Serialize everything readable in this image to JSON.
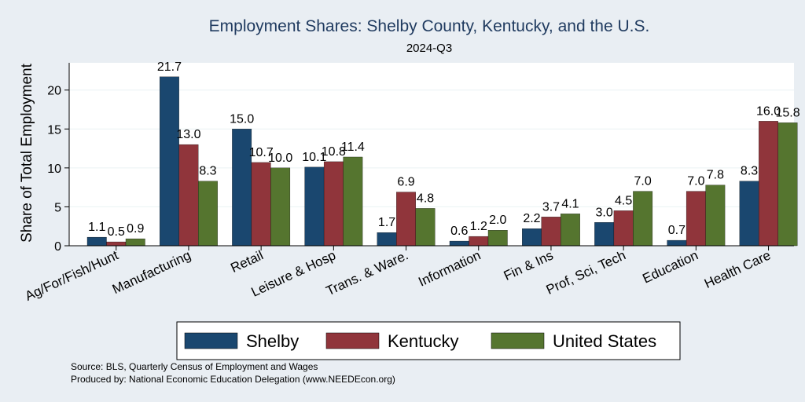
{
  "colors": {
    "background": "#e9eef3",
    "plot_background": "#ffffff",
    "Shelby": "#1a476f",
    "Kentucky": "#90353b",
    "United States": "#55752f"
  },
  "chart_data": {
    "type": "bar",
    "title": "Employment Shares: Shelby County, Kentucky, and the U.S.",
    "subtitle": "2024-Q3",
    "ylabel": "Share of Total Employment",
    "xlabel": "",
    "ylim": [
      0,
      23.5
    ],
    "yticks": [
      0,
      5,
      10,
      15,
      20
    ],
    "grid": true,
    "legend": "bottom",
    "categories": [
      "Ag/For/Fish/Hunt",
      "Manufacturing",
      "Retail",
      "Leisure & Hosp",
      "Trans. & Ware.",
      "Information",
      "Fin & Ins",
      "Prof, Sci, Tech",
      "Education",
      "Health Care"
    ],
    "series": [
      {
        "name": "Shelby",
        "values": [
          1.1,
          21.7,
          15.0,
          10.1,
          1.7,
          0.6,
          2.2,
          3.0,
          0.7,
          8.3
        ]
      },
      {
        "name": "Kentucky",
        "values": [
          0.5,
          13.0,
          10.7,
          10.8,
          6.9,
          1.2,
          3.7,
          4.5,
          7.0,
          16.0
        ]
      },
      {
        "name": "United States",
        "values": [
          0.9,
          8.3,
          10.0,
          11.4,
          4.8,
          2.0,
          4.1,
          7.0,
          7.8,
          15.8
        ]
      }
    ]
  },
  "notes": {
    "source": "Source: BLS, Quarterly Census of Employment and Wages",
    "produced_by": "Produced by: National Economic Education Delegation (www.NEEDEcon.org)"
  }
}
